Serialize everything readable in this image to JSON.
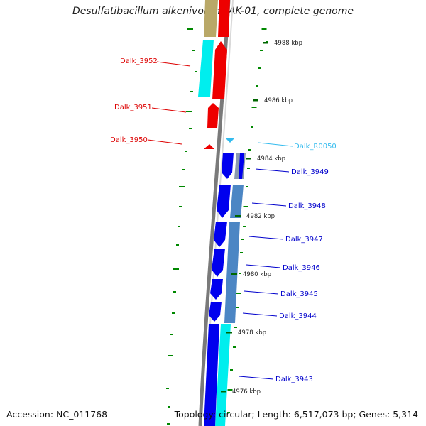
{
  "title": "Desulfatibacillum alkenivorans AK-01, complete genome",
  "footer": {
    "accession": "Accession: NC_011768",
    "topology": "Topology: circular; Length: 6,517,073 bp; Genes: 5,314"
  },
  "colors": {
    "forward_cds": "#ee0000",
    "reverse_cds": "#0000ee",
    "rna": "#33bbee",
    "cyan_track": "#00eeee",
    "steelblue_track": "#4c86c4",
    "tan_track": "#b9a868",
    "backbone": "#7a7a7a",
    "gc_ticks": "#008800"
  },
  "scale_labels": [
    "4988 kbp",
    "4986 kbp",
    "4984 kbp",
    "4982 kbp",
    "4980 kbp",
    "4978 kbp",
    "4976 kbp"
  ],
  "left_labels": [
    "Dalk_3952",
    "Dalk_3951",
    "Dalk_3950"
  ],
  "right_labels": [
    "Dalk_R0050",
    "Dalk_3949",
    "Dalk_3948",
    "Dalk_3947",
    "Dalk_3946",
    "Dalk_3945",
    "Dalk_3944",
    "Dalk_3943"
  ]
}
